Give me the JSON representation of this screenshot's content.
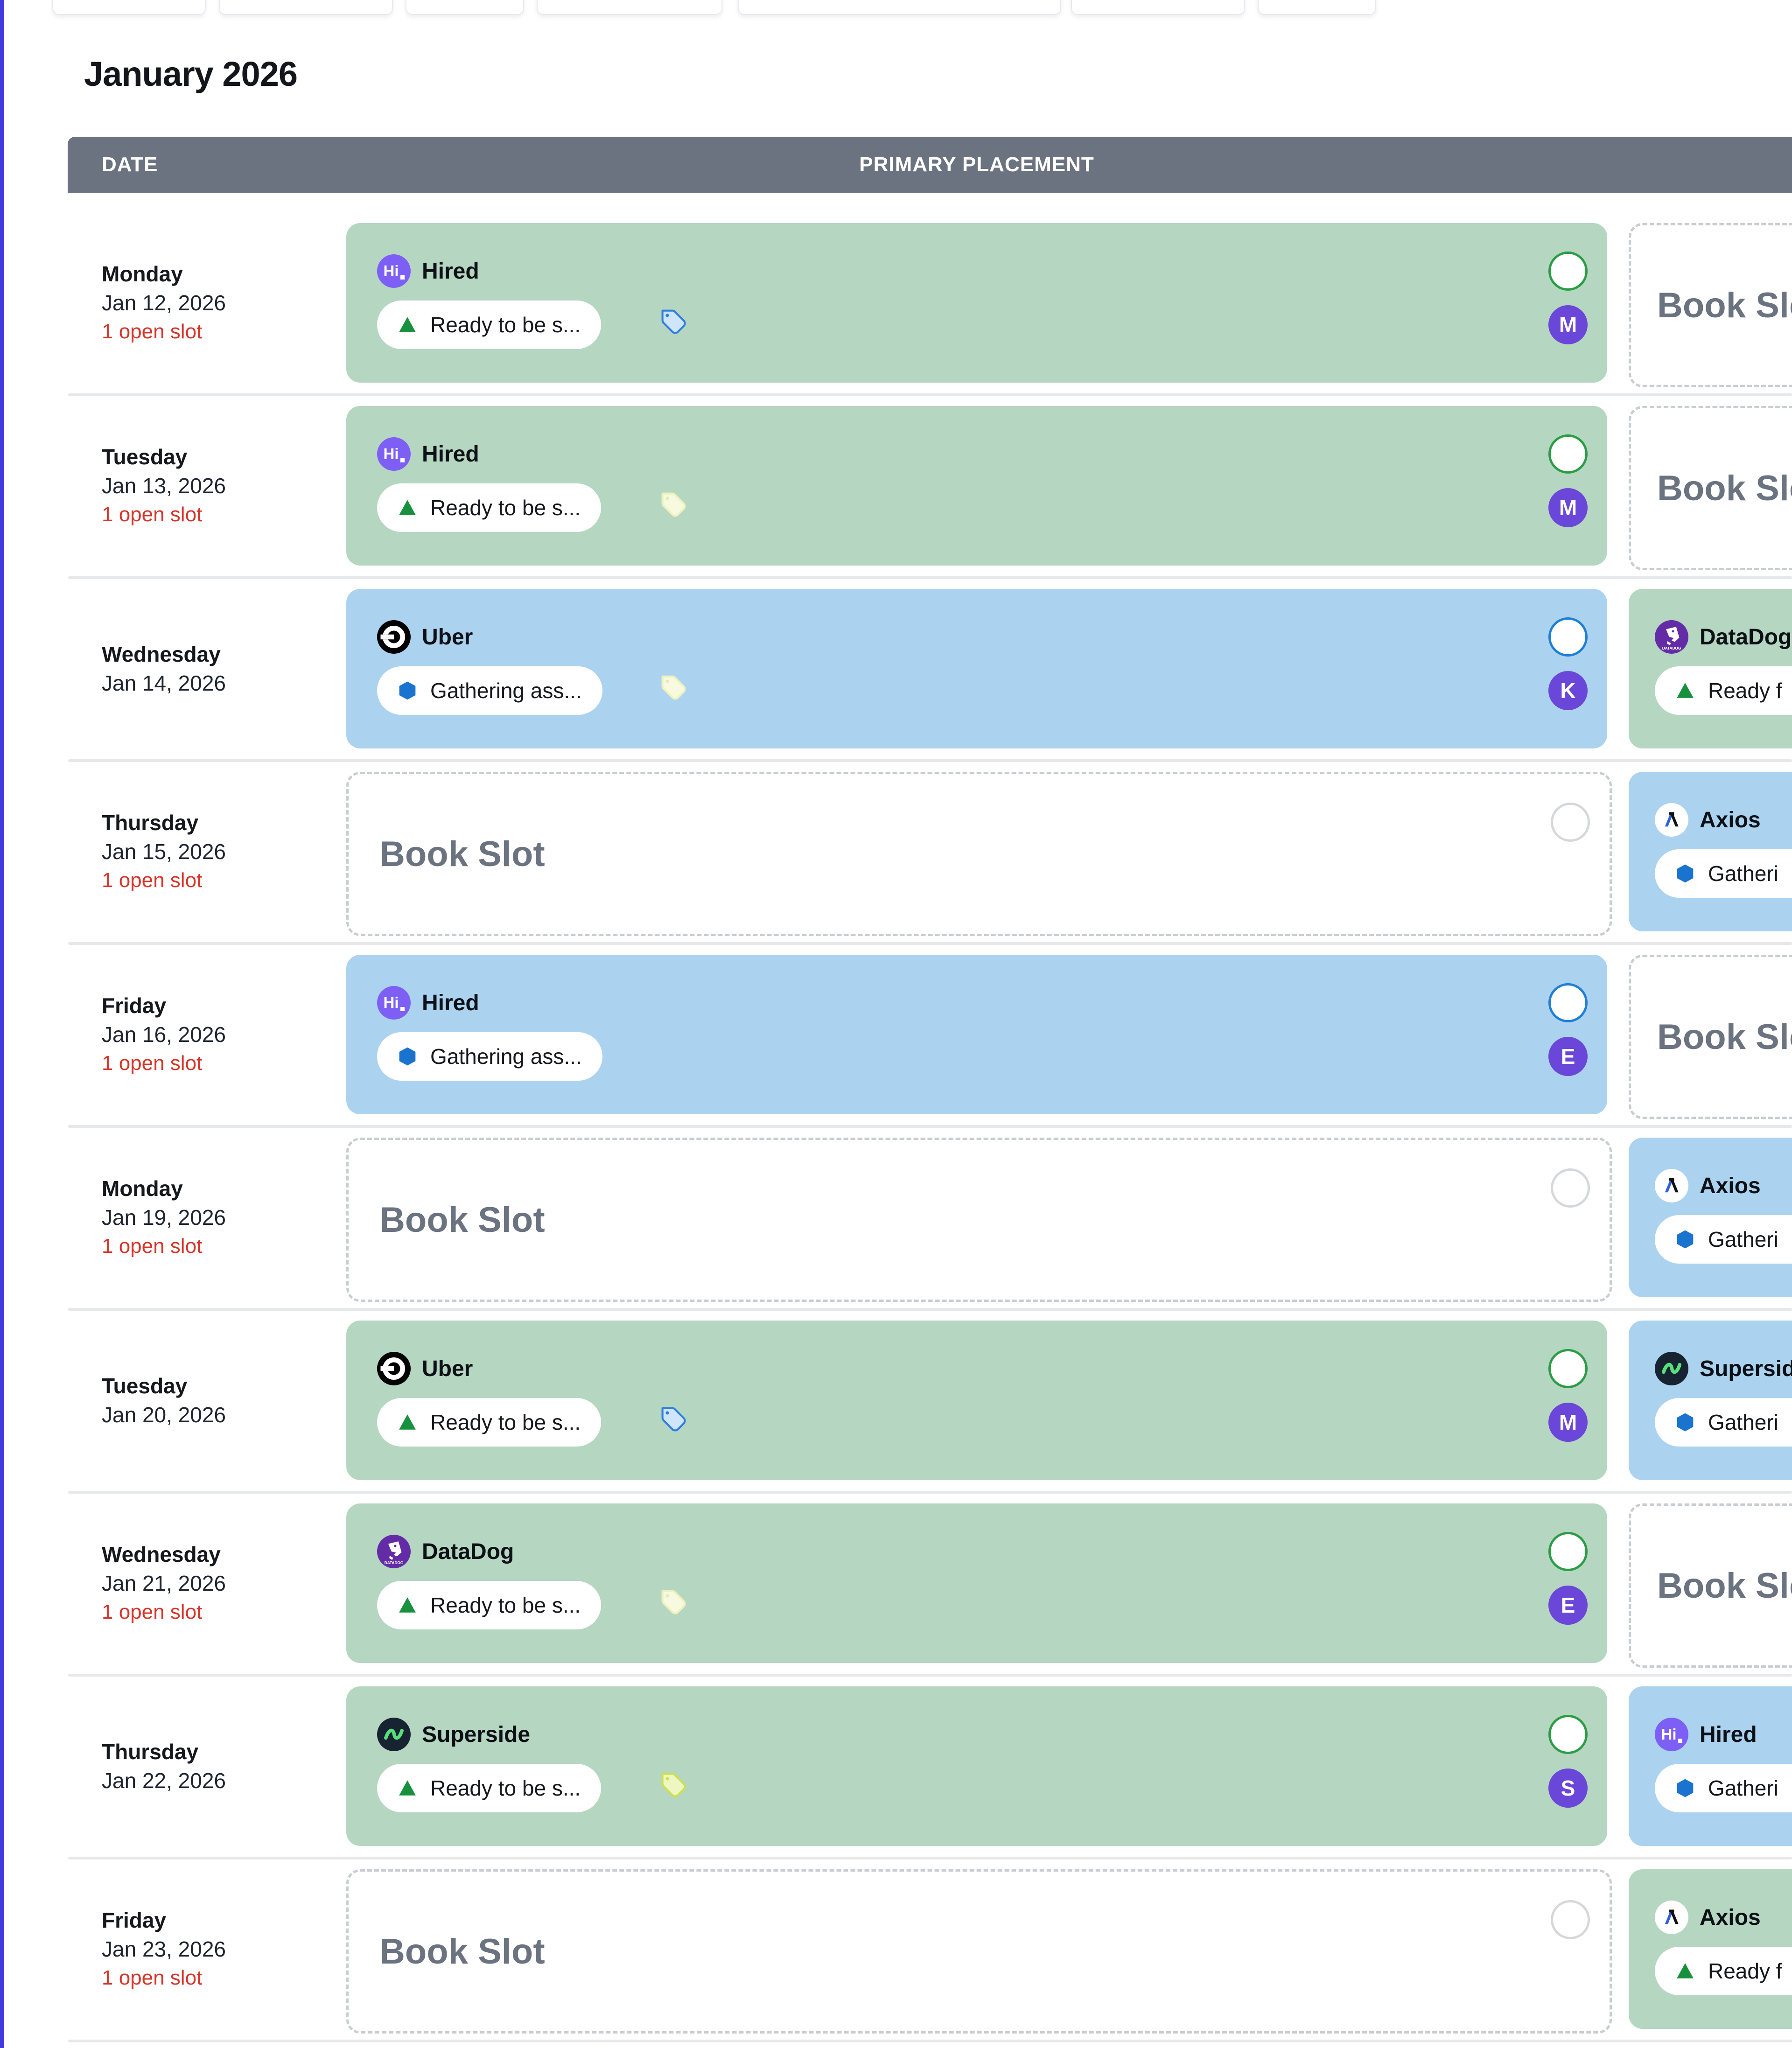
{
  "page": {
    "title": "January 2026",
    "columns": {
      "date": "DATE",
      "primary": "PRIMARY PLACEMENT"
    },
    "book_slot_label": "Book Slot"
  },
  "colors": {
    "left_accent": "#4338e0",
    "header_bg": "#6b7280",
    "green_card": "#b5d6c0",
    "blue_card": "#abd3ef",
    "open_slot_red": "#d63429",
    "book_slot_gray": "#6b7280",
    "avatar_purple": "#6a46d9",
    "ring_green": "#2a9d44",
    "ring_blue": "#1e7fd6",
    "ring_gray": "#d5d7da",
    "triangle_green": "#17913e",
    "hexagon_blue": "#1a73cf"
  },
  "top_tab_count": 7,
  "rows": [
    {
      "day": "Monday",
      "date": "Jan 12, 2026",
      "open": "1 open slot",
      "primary": {
        "kind": "card",
        "color": "green",
        "company": "Hired",
        "logo": "hired-logo",
        "status": "Ready to be s...",
        "status_icon": "triangle-up-icon",
        "tag": "blue",
        "avatar": "M"
      },
      "secondary": {
        "kind": "book"
      }
    },
    {
      "day": "Tuesday",
      "date": "Jan 13, 2026",
      "open": "1 open slot",
      "primary": {
        "kind": "card",
        "color": "green",
        "company": "Hired",
        "logo": "hired-logo",
        "status": "Ready to be s...",
        "status_icon": "triangle-up-icon",
        "tag": "cream",
        "avatar": "M"
      },
      "secondary": {
        "kind": "book"
      }
    },
    {
      "day": "Wednesday",
      "date": "Jan 14, 2026",
      "open": null,
      "primary": {
        "kind": "card",
        "color": "blue",
        "company": "Uber",
        "logo": "uber-logo",
        "status": "Gathering ass...",
        "status_icon": "hexagon-icon",
        "tag": "cream",
        "avatar": "K"
      },
      "secondary": {
        "kind": "card",
        "color": "green",
        "company": "DataDog",
        "logo": "datadog-logo",
        "status": "Ready f",
        "status_icon": "triangle-up-icon"
      }
    },
    {
      "day": "Thursday",
      "date": "Jan 15, 2026",
      "open": "1 open slot",
      "primary": {
        "kind": "book"
      },
      "secondary": {
        "kind": "card",
        "color": "blue",
        "company": "Axios",
        "logo": "axios-logo",
        "status": "Gatheri",
        "status_icon": "hexagon-icon"
      }
    },
    {
      "day": "Friday",
      "date": "Jan 16, 2026",
      "open": "1 open slot",
      "primary": {
        "kind": "card",
        "color": "blue",
        "company": "Hired",
        "logo": "hired-logo",
        "status": "Gathering ass...",
        "status_icon": "hexagon-icon",
        "tag": null,
        "avatar": "E"
      },
      "secondary": {
        "kind": "book"
      }
    },
    {
      "day": "Monday",
      "date": "Jan 19, 2026",
      "open": "1 open slot",
      "primary": {
        "kind": "book"
      },
      "secondary": {
        "kind": "card",
        "color": "blue",
        "company": "Axios",
        "logo": "axios-logo",
        "status": "Gatheri",
        "status_icon": "hexagon-icon"
      }
    },
    {
      "day": "Tuesday",
      "date": "Jan 20, 2026",
      "open": null,
      "primary": {
        "kind": "card",
        "color": "green",
        "company": "Uber",
        "logo": "uber-logo",
        "status": "Ready to be s...",
        "status_icon": "triangle-up-icon",
        "tag": "blue",
        "avatar": "M"
      },
      "secondary": {
        "kind": "card",
        "color": "blue",
        "company": "Superside",
        "logo": "superside-logo",
        "status": "Gatheri",
        "status_icon": "hexagon-icon"
      }
    },
    {
      "day": "Wednesday",
      "date": "Jan 21, 2026",
      "open": "1 open slot",
      "primary": {
        "kind": "card",
        "color": "green",
        "company": "DataDog",
        "logo": "datadog-logo",
        "status": "Ready to be s...",
        "status_icon": "triangle-up-icon",
        "tag": "cream",
        "avatar": "E"
      },
      "secondary": {
        "kind": "book"
      }
    },
    {
      "day": "Thursday",
      "date": "Jan 22, 2026",
      "open": null,
      "primary": {
        "kind": "card",
        "color": "green",
        "company": "Superside",
        "logo": "superside-logo",
        "status": "Ready to be s...",
        "status_icon": "triangle-up-icon",
        "tag": "lime",
        "avatar": "S"
      },
      "secondary": {
        "kind": "card",
        "color": "blue",
        "company": "Hired",
        "logo": "hired-logo",
        "status": "Gatheri",
        "status_icon": "hexagon-icon"
      }
    },
    {
      "day": "Friday",
      "date": "Jan 23, 2026",
      "open": "1 open slot",
      "primary": {
        "kind": "book"
      },
      "secondary": {
        "kind": "card",
        "color": "green",
        "company": "Axios",
        "logo": "axios-logo",
        "status": "Ready f",
        "status_icon": "triangle-up-icon"
      }
    }
  ]
}
